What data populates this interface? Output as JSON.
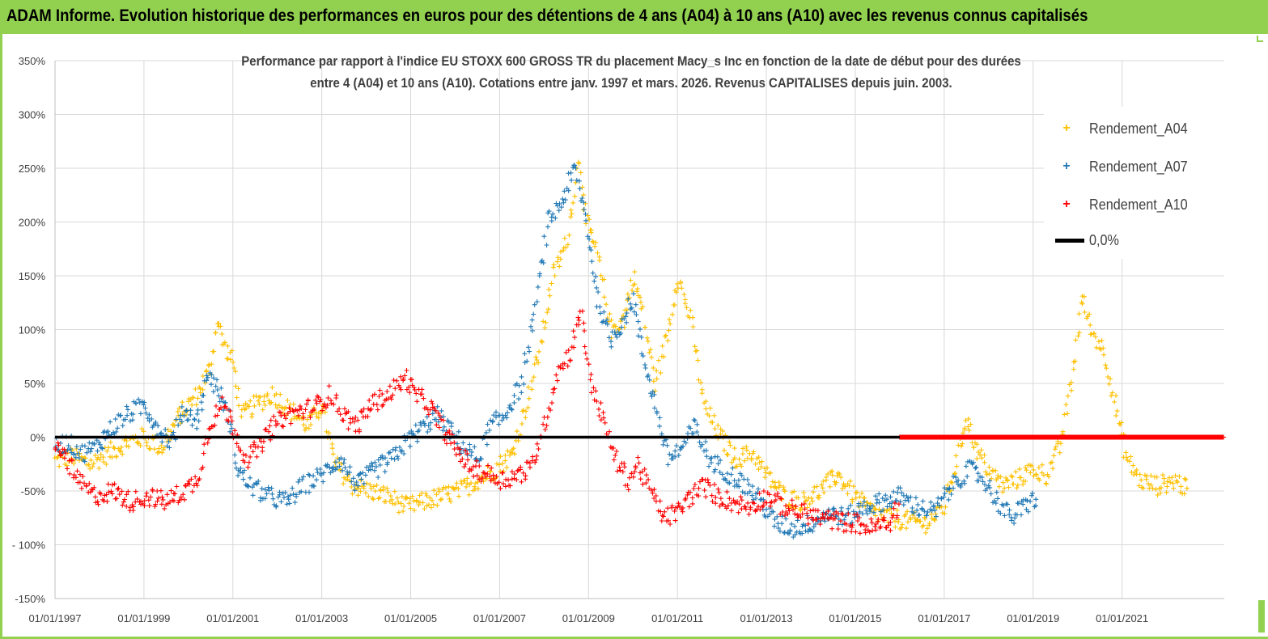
{
  "header": {
    "title": "ADAM Informe. Evolution historique des performances en euros pour des détentions de 4 ans (A04) à 10 ans (A10) avec les revenus connus capitalisés"
  },
  "colors": {
    "header_bg": "#92d050",
    "a04": "#ffc000",
    "a07": "#1f77b4",
    "a10": "#ff0000",
    "zero": "#000000"
  },
  "chart_data": {
    "type": "scatter",
    "title": "Performance par rapport à l'indice EU STOXX 600 GROSS TR  du placement Macy_s Inc en fonction de la date de début pour des durées entre 4 (A04) et 10 ans (A10). Cotations entre janv. 1997 et mars. 2026. Revenus CAPITALISES depuis juin. 2003.",
    "title_lines": [
      "Performance par rapport à l'indice EU STOXX 600 GROSS TR  du placement Macy_s Inc en fonction de la date de début pour des durées",
      "entre 4 (A04) et 10 ans (A10). Cotations entre janv. 1997 et mars. 2026. Revenus CAPITALISES depuis juin. 2003."
    ],
    "xlabel": "",
    "ylabel": "",
    "x_range": [
      1997.0,
      2023.3
    ],
    "ylim": [
      -150,
      350
    ],
    "y_ticks": [
      "-150%",
      "- 100%",
      "-50%",
      "0%",
      "50%",
      "100%",
      "150%",
      "200%",
      "250%",
      "300%",
      "350%"
    ],
    "y_tick_values": [
      -150,
      -100,
      -50,
      0,
      50,
      100,
      150,
      200,
      250,
      300,
      350
    ],
    "x_ticks": [
      "01/01/1997",
      "01/01/1999",
      "01/01/2001",
      "01/01/2003",
      "01/01/2005",
      "01/01/2007",
      "01/01/2009",
      "01/01/2011",
      "01/01/2013",
      "01/01/2015",
      "01/01/2017",
      "01/01/2019",
      "01/01/2021"
    ],
    "x_tick_values": [
      1997,
      1999,
      2001,
      2003,
      2005,
      2007,
      2009,
      2011,
      2013,
      2015,
      2017,
      2019,
      2021
    ],
    "grid": true,
    "legend_position": "top-right",
    "series": [
      {
        "name": "Rendement_A04",
        "marker": "+",
        "points": [
          [
            1997.0,
            -22
          ],
          [
            1997.4,
            -18
          ],
          [
            1997.8,
            -25
          ],
          [
            1998.2,
            -15
          ],
          [
            1998.6,
            -5
          ],
          [
            1999.0,
            0
          ],
          [
            1999.4,
            -10
          ],
          [
            1999.8,
            20
          ],
          [
            2000.2,
            40
          ],
          [
            2000.5,
            65
          ],
          [
            2000.65,
            110
          ],
          [
            2000.8,
            85
          ],
          [
            2001.0,
            70
          ],
          [
            2001.2,
            20
          ],
          [
            2001.5,
            30
          ],
          [
            2001.9,
            40
          ],
          [
            2002.3,
            25
          ],
          [
            2002.7,
            10
          ],
          [
            2003.0,
            30
          ],
          [
            2003.3,
            -25
          ],
          [
            2003.7,
            -45
          ],
          [
            2004.1,
            -50
          ],
          [
            2004.5,
            -55
          ],
          [
            2004.9,
            -65
          ],
          [
            2005.3,
            -60
          ],
          [
            2005.7,
            -55
          ],
          [
            2006.1,
            -50
          ],
          [
            2006.5,
            -40
          ],
          [
            2006.9,
            -30
          ],
          [
            2007.3,
            -15
          ],
          [
            2007.6,
            30
          ],
          [
            2007.9,
            80
          ],
          [
            2008.2,
            150
          ],
          [
            2008.5,
            180
          ],
          [
            2008.8,
            260
          ],
          [
            2008.95,
            200
          ],
          [
            2009.2,
            170
          ],
          [
            2009.5,
            100
          ],
          [
            2009.8,
            110
          ],
          [
            2010.0,
            150
          ],
          [
            2010.2,
            120
          ],
          [
            2010.5,
            50
          ],
          [
            2010.8,
            100
          ],
          [
            2011.0,
            150
          ],
          [
            2011.3,
            110
          ],
          [
            2011.6,
            30
          ],
          [
            2011.9,
            5
          ],
          [
            2012.3,
            -20
          ],
          [
            2012.7,
            -15
          ],
          [
            2013.0,
            -35
          ],
          [
            2013.4,
            -55
          ],
          [
            2013.8,
            -60
          ],
          [
            2014.2,
            -50
          ],
          [
            2014.6,
            -35
          ],
          [
            2015.0,
            -55
          ],
          [
            2015.4,
            -70
          ],
          [
            2015.8,
            -75
          ],
          [
            2016.2,
            -78
          ],
          [
            2016.6,
            -80
          ],
          [
            2017.0,
            -65
          ],
          [
            2017.3,
            -20
          ],
          [
            2017.5,
            20
          ],
          [
            2017.7,
            -10
          ],
          [
            2018.0,
            -30
          ],
          [
            2018.3,
            -45
          ],
          [
            2018.6,
            -40
          ],
          [
            2019.0,
            -30
          ],
          [
            2019.3,
            -35
          ],
          [
            2019.6,
            -10
          ],
          [
            2019.9,
            60
          ],
          [
            2020.1,
            130
          ],
          [
            2020.3,
            100
          ],
          [
            2020.6,
            80
          ],
          [
            2020.9,
            20
          ],
          [
            2021.1,
            -20
          ],
          [
            2021.4,
            -40
          ],
          [
            2021.8,
            -45
          ],
          [
            2022.2,
            -40
          ],
          [
            2022.5,
            -50
          ]
        ]
      },
      {
        "name": "Rendement_A07",
        "marker": "+",
        "points": [
          [
            1997.0,
            -8
          ],
          [
            1997.3,
            -5
          ],
          [
            1997.6,
            -15
          ],
          [
            1997.9,
            -10
          ],
          [
            1998.2,
            5
          ],
          [
            1998.6,
            20
          ],
          [
            1999.0,
            30
          ],
          [
            1999.3,
            10
          ],
          [
            1999.6,
            -5
          ],
          [
            1999.9,
            25
          ],
          [
            2000.2,
            15
          ],
          [
            2000.45,
            60
          ],
          [
            2000.7,
            40
          ],
          [
            2000.9,
            20
          ],
          [
            2001.1,
            -30
          ],
          [
            2001.4,
            -45
          ],
          [
            2001.8,
            -55
          ],
          [
            2002.2,
            -60
          ],
          [
            2002.6,
            -45
          ],
          [
            2003.0,
            -35
          ],
          [
            2003.4,
            -20
          ],
          [
            2003.8,
            -45
          ],
          [
            2004.2,
            -30
          ],
          [
            2004.6,
            -20
          ],
          [
            2005.0,
            0
          ],
          [
            2005.3,
            10
          ],
          [
            2005.6,
            20
          ],
          [
            2005.9,
            5
          ],
          [
            2006.2,
            -10
          ],
          [
            2006.5,
            -20
          ],
          [
            2006.8,
            10
          ],
          [
            2007.1,
            20
          ],
          [
            2007.5,
            50
          ],
          [
            2007.8,
            120
          ],
          [
            2008.1,
            200
          ],
          [
            2008.4,
            220
          ],
          [
            2008.7,
            250
          ],
          [
            2008.95,
            200
          ],
          [
            2009.2,
            130
          ],
          [
            2009.5,
            90
          ],
          [
            2009.8,
            110
          ],
          [
            2010.0,
            130
          ],
          [
            2010.2,
            80
          ],
          [
            2010.5,
            30
          ],
          [
            2010.8,
            -20
          ],
          [
            2011.1,
            -10
          ],
          [
            2011.4,
            10
          ],
          [
            2011.7,
            -20
          ],
          [
            2012.0,
            -30
          ],
          [
            2012.4,
            -40
          ],
          [
            2012.8,
            -55
          ],
          [
            2013.2,
            -80
          ],
          [
            2013.6,
            -85
          ],
          [
            2014.0,
            -80
          ],
          [
            2014.4,
            -70
          ],
          [
            2014.8,
            -75
          ],
          [
            2015.2,
            -65
          ],
          [
            2015.6,
            -60
          ],
          [
            2016.0,
            -55
          ],
          [
            2016.4,
            -65
          ],
          [
            2016.8,
            -70
          ],
          [
            2017.0,
            -55
          ],
          [
            2017.3,
            -40
          ],
          [
            2017.6,
            -30
          ],
          [
            2017.9,
            -40
          ],
          [
            2018.2,
            -60
          ],
          [
            2018.5,
            -75
          ],
          [
            2018.8,
            -65
          ],
          [
            2019.1,
            -55
          ]
        ]
      },
      {
        "name": "Rendement_A10",
        "marker": "+",
        "points": [
          [
            1997.0,
            -12
          ],
          [
            1997.2,
            -15
          ],
          [
            1997.5,
            -40
          ],
          [
            1997.9,
            -55
          ],
          [
            1998.3,
            -50
          ],
          [
            1998.7,
            -60
          ],
          [
            1999.1,
            -55
          ],
          [
            1999.5,
            -60
          ],
          [
            1999.9,
            -50
          ],
          [
            2000.2,
            -40
          ],
          [
            2000.5,
            15
          ],
          [
            2000.8,
            30
          ],
          [
            2001.0,
            10
          ],
          [
            2001.3,
            -20
          ],
          [
            2001.6,
            -10
          ],
          [
            2001.9,
            10
          ],
          [
            2002.2,
            20
          ],
          [
            2002.6,
            25
          ],
          [
            2002.9,
            30
          ],
          [
            2003.2,
            40
          ],
          [
            2003.5,
            20
          ],
          [
            2003.8,
            10
          ],
          [
            2004.1,
            30
          ],
          [
            2004.5,
            40
          ],
          [
            2004.9,
            55
          ],
          [
            2005.1,
            40
          ],
          [
            2005.4,
            30
          ],
          [
            2005.7,
            10
          ],
          [
            2006.0,
            -10
          ],
          [
            2006.4,
            -30
          ],
          [
            2006.8,
            -35
          ],
          [
            2007.1,
            -40
          ],
          [
            2007.4,
            -35
          ],
          [
            2007.7,
            -30
          ],
          [
            2008.0,
            10
          ],
          [
            2008.3,
            60
          ],
          [
            2008.6,
            80
          ],
          [
            2008.85,
            120
          ],
          [
            2009.0,
            60
          ],
          [
            2009.3,
            20
          ],
          [
            2009.6,
            -20
          ],
          [
            2009.9,
            -40
          ],
          [
            2010.1,
            -25
          ],
          [
            2010.4,
            -50
          ],
          [
            2010.7,
            -75
          ],
          [
            2011.0,
            -70
          ],
          [
            2011.3,
            -55
          ],
          [
            2011.6,
            -45
          ],
          [
            2011.9,
            -55
          ],
          [
            2012.2,
            -60
          ],
          [
            2012.6,
            -65
          ],
          [
            2013.0,
            -55
          ],
          [
            2013.4,
            -65
          ],
          [
            2013.8,
            -70
          ],
          [
            2014.2,
            -75
          ],
          [
            2014.6,
            -78
          ],
          [
            2015.0,
            -80
          ],
          [
            2015.4,
            -85
          ],
          [
            2015.8,
            -78
          ],
          [
            2016.0,
            -62
          ]
        ]
      }
    ],
    "zero_line": {
      "name": "0,0%",
      "value": 0
    },
    "legend": [
      "Rendement_A04",
      "Rendement_A07",
      "Rendement_A10",
      "0,0%"
    ]
  }
}
